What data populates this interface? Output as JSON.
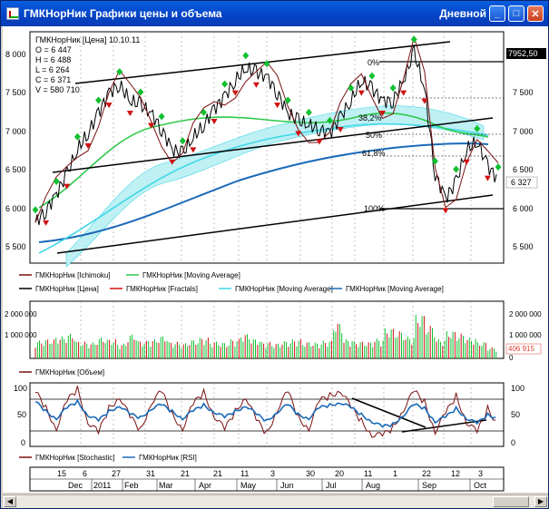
{
  "window": {
    "title": "ГМКНорНик Графики цены и объема",
    "period": "Дневной",
    "minimize": "_",
    "maximize": "□",
    "close": "✕"
  },
  "info": {
    "header": "ГМКНорНик [Цена] 10.10.11",
    "o": "O = 6 447",
    "h": "H = 6 488",
    "l": "L = 6 264",
    "c": "C = 6 371",
    "v": "V = 580 710"
  },
  "price_pane": {
    "left_ticks": [
      "8 000",
      "7 500",
      "7 000",
      "6 500",
      "6 000",
      "5 500"
    ],
    "right_ticks": [
      "7 500",
      "7 000",
      "6 500",
      "6 000",
      "5 500"
    ],
    "last_price": "6 327",
    "top_badge": "7952,50",
    "fib_labels": [
      "0%",
      "38,2%",
      "50%",
      "61,8%",
      "100%"
    ],
    "legend_row1": [
      "ГМКНорНик [Ichimoku]",
      "ГМКНорНик [Moving Average]"
    ],
    "legend_row2": [
      "ГМКНорНик [Цена]",
      "ГМКНорНик [Fractals]",
      "ГМКНорНик [Moving Average]",
      "ГМКНорНик [Moving Average]"
    ]
  },
  "volume_pane": {
    "left_ticks": [
      "2 000 000",
      "1 000 000"
    ],
    "right_ticks": [
      "2 000 000",
      "1 000 000",
      "0"
    ],
    "last_value": "406 915",
    "legend": [
      "ГМКНорНик [Объем]"
    ]
  },
  "osc_pane": {
    "left_ticks": [
      "100",
      "50",
      "0"
    ],
    "right_ticks": [
      "100",
      "50",
      "0"
    ],
    "legend": [
      "ГМКНорНик [Stochastic]",
      "ГМКНорНик [RSI]"
    ]
  },
  "date_axis": {
    "days": [
      "15",
      "6",
      "27",
      "31",
      "21",
      "21",
      "11",
      "3",
      "30",
      "20",
      "11",
      "1",
      "22",
      "12",
      "3"
    ],
    "months": [
      "Dec",
      "2011",
      "Feb",
      "Mar",
      "Apr",
      "May",
      "Jun",
      "Jul",
      "Aug",
      "Sep",
      "Oct"
    ]
  },
  "colors": {
    "ichimoku": "#7a1010",
    "ma_green": "#2ec84a",
    "price": "#000000",
    "fractals_up": "#10c030",
    "fractals_down": "#d01010",
    "ma_cyan": "#40d8e8",
    "ma_blue": "#1a6ab8",
    "badge": "#e04030"
  },
  "chart_data": {
    "type": "line",
    "title": "ГМКНорНик [Цена] 10.10.11",
    "ylim": [
      5300,
      8150
    ],
    "ohlcv_last": {
      "open": 6447,
      "high": 6488,
      "low": 6264,
      "close": 6371,
      "volume": 580710
    },
    "price_series": [
      5800,
      5950,
      6150,
      6400,
      6700,
      6900,
      7150,
      7400,
      7500,
      7300,
      7250,
      7150,
      6950,
      6700,
      6650,
      6850,
      7000,
      7200,
      7350,
      7550,
      7700,
      7650,
      7600,
      7400,
      7150,
      7050,
      7000,
      6950,
      6900,
      7100,
      7300,
      7550,
      7450,
      7300,
      7300,
      7550,
      7900,
      7450,
      6400,
      6100,
      6300,
      6700,
      6800,
      6500,
      6327
    ],
    "volume_series": [
      650000,
      700000,
      800000,
      900000,
      620000,
      580000,
      760000,
      700000,
      540000,
      880000,
      640000,
      700000,
      820000,
      600000,
      560000,
      680000,
      760000,
      620000,
      580000,
      700000,
      900000,
      720000,
      600000,
      550000,
      640000,
      700000,
      600000,
      580000,
      650000,
      1300000,
      700000,
      620000,
      600000,
      720000,
      1100000,
      1000000,
      800000,
      1600000,
      1200000,
      700000,
      1000000,
      900000,
      750000,
      600000,
      406915
    ],
    "stoch_series": [
      85,
      60,
      30,
      70,
      90,
      40,
      20,
      60,
      80,
      45,
      25,
      70,
      85,
      50,
      30,
      65,
      85,
      50,
      25,
      55,
      80,
      40,
      20,
      60,
      85,
      45,
      30,
      70,
      80,
      90,
      60,
      40,
      20,
      15,
      30,
      60,
      85,
      70,
      25,
      50,
      80,
      40,
      20,
      60,
      35
    ],
    "rsi_series": [
      70,
      55,
      45,
      60,
      70,
      50,
      40,
      55,
      65,
      50,
      45,
      60,
      65,
      55,
      45,
      55,
      65,
      55,
      45,
      55,
      65,
      50,
      40,
      55,
      65,
      50,
      45,
      60,
      65,
      70,
      60,
      50,
      40,
      30,
      35,
      50,
      65,
      60,
      40,
      45,
      60,
      45,
      35,
      50,
      45
    ]
  }
}
